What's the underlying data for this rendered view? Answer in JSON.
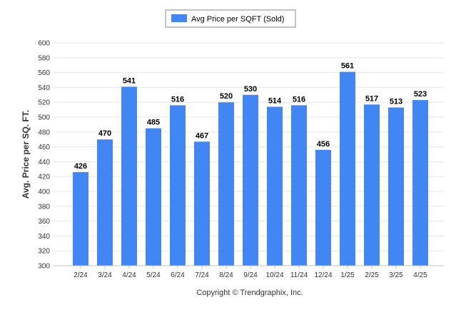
{
  "chart_data": {
    "type": "bar",
    "categories": [
      "2/24",
      "3/24",
      "4/24",
      "5/24",
      "6/24",
      "7/24",
      "8/24",
      "9/24",
      "10/24",
      "11/24",
      "12/24",
      "1/25",
      "2/25",
      "3/25",
      "4/25"
    ],
    "series": [
      {
        "name": "Avg Price per SQFT (Sold)",
        "values": [
          426,
          470,
          541,
          485,
          516,
          467,
          520,
          530,
          514,
          516,
          456,
          561,
          517,
          513,
          523
        ]
      }
    ],
    "ylabel": "Avg. Price per SQ. FT.",
    "xlabel": "",
    "ylim": [
      300,
      600
    ],
    "yticks": [
      300,
      320,
      340,
      360,
      380,
      400,
      420,
      440,
      460,
      480,
      500,
      520,
      540,
      560,
      580,
      600
    ],
    "grid": true,
    "legend_position": "top-center",
    "bar_color": "#4286f4",
    "footer": "Copyright © Trendgraphix, Inc."
  }
}
